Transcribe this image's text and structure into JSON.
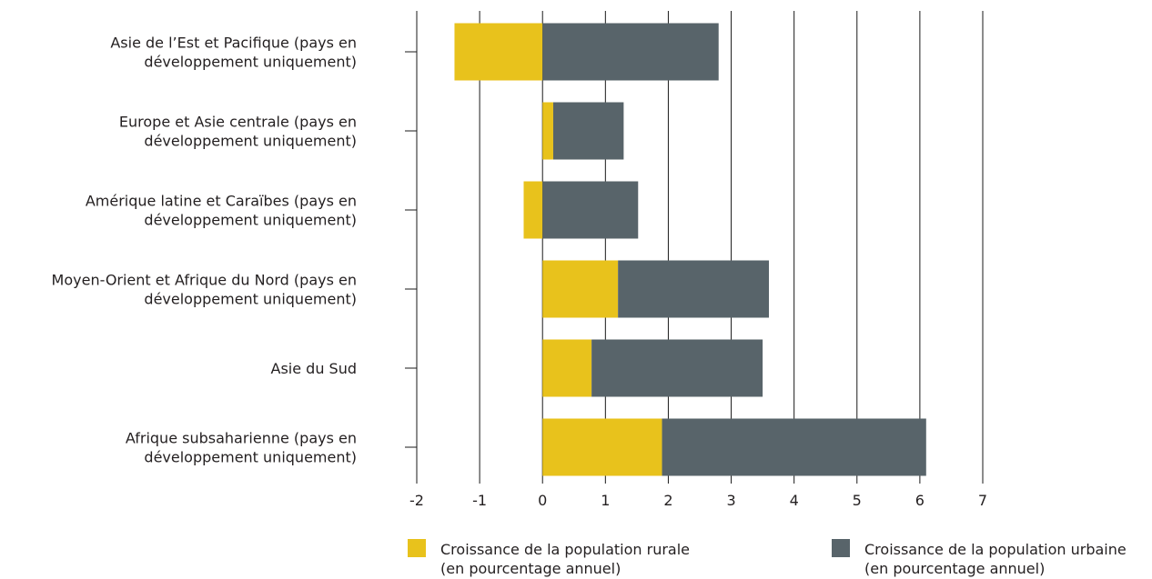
{
  "chart_data": {
    "type": "bar",
    "stacked": true,
    "orientation": "horizontal",
    "categories": [
      [
        "Asie de l’Est et Pacifique (pays en",
        "développement uniquement)"
      ],
      [
        "Europe et Asie centrale (pays en",
        "développement uniquement)"
      ],
      [
        "Amérique latine et Caraïbes (pays en",
        "développement uniquement)"
      ],
      [
        "Moyen-Orient et Afrique du Nord (pays en",
        "développement uniquement)"
      ],
      [
        "Asie du Sud"
      ],
      [
        "Afrique subsaharienne (pays en",
        "développement uniquement)"
      ]
    ],
    "series": [
      {
        "name": [
          "Croissance de la population rurale",
          "(en pourcentage annuel)"
        ],
        "color": "#e8c21c",
        "values": [
          -1.4,
          0.17,
          -0.3,
          1.2,
          0.78,
          1.9
        ]
      },
      {
        "name": [
          "Croissance de la population urbaine",
          "(en pourcentage annuel)"
        ],
        "color": "#58646a",
        "values": [
          2.8,
          1.12,
          1.52,
          2.4,
          2.72,
          4.2
        ]
      }
    ],
    "xlim": [
      -2,
      7
    ],
    "xticks": [
      "-2",
      "-1",
      "0",
      "1",
      "2",
      "3",
      "4",
      "5",
      "6",
      "7"
    ],
    "grid": true,
    "legend_position": "bottom"
  }
}
